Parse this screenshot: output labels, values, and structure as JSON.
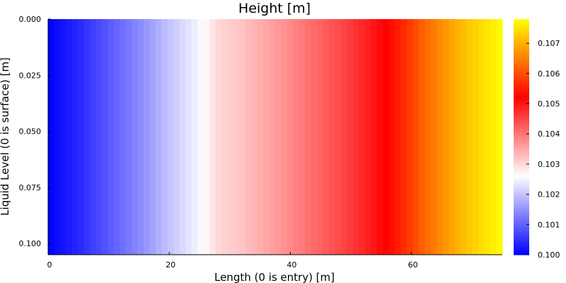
{
  "chart_data": {
    "type": "heatmap",
    "title": "Height [m]",
    "xlabel": "Length (0 is entry) [m]",
    "ylabel": "Liquid Level (0 is surface) [m]",
    "xlim": [
      0,
      75
    ],
    "ylim": [
      0,
      0.105
    ],
    "y_inverted": true,
    "x_ticks": [
      0,
      20,
      40,
      60
    ],
    "x_tick_labels": [
      "0",
      "20",
      "40",
      "60"
    ],
    "y_ticks": [
      0,
      0.025,
      0.05,
      0.075,
      0.1
    ],
    "y_tick_labels": [
      "0.000",
      "0.025",
      "0.050",
      "0.075",
      "0.100"
    ],
    "colorbar": {
      "range": [
        0.1,
        0.1078
      ],
      "ticks": [
        0.1,
        0.101,
        0.102,
        0.103,
        0.104,
        0.105,
        0.106,
        0.107
      ],
      "tick_labels": [
        "0.100",
        "0.101",
        "0.102",
        "0.103",
        "0.104",
        "0.105",
        "0.106",
        "0.107"
      ],
      "colormap": [
        "#0000ff",
        "#ffffff",
        "#ff0000",
        "#ffff00"
      ]
    },
    "column_count": 76,
    "value_profile": {
      "x": [
        0,
        5,
        10,
        15,
        20,
        25,
        28,
        32,
        36,
        40,
        45,
        50,
        54,
        58,
        62,
        66,
        70,
        73,
        75
      ],
      "value": [
        0.1,
        0.1004,
        0.1009,
        0.1014,
        0.102,
        0.1025,
        0.103,
        0.1032,
        0.1035,
        0.1038,
        0.1042,
        0.1046,
        0.105,
        0.1055,
        0.1062,
        0.1068,
        0.1073,
        0.1076,
        0.1078
      ]
    },
    "grid": false,
    "legend": "colorbar-right"
  }
}
